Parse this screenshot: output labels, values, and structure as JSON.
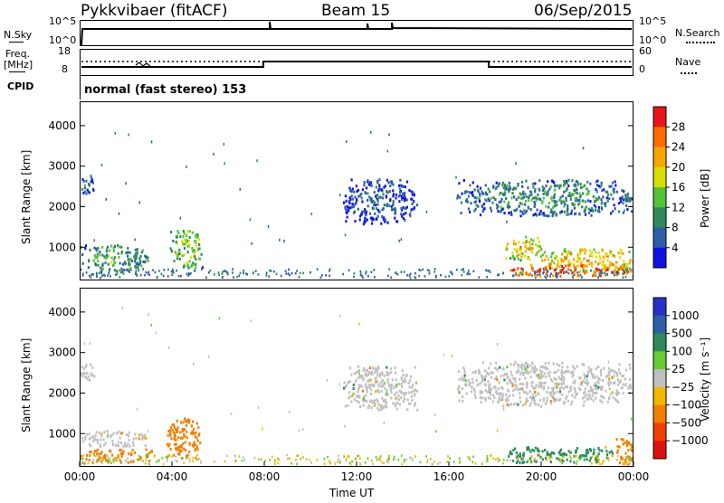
{
  "header": {
    "radar": "Pykkvibaer (fitACF)",
    "beam": "Beam 15",
    "date": "06/Sep/2015"
  },
  "nsky_panel": {
    "left_label": "N.Sky",
    "right_label": "N.Search",
    "left_ticks": [
      "10^5",
      "10^0"
    ],
    "right_ticks": [
      "10^5",
      "10^0"
    ]
  },
  "freq_panel": {
    "left_label_line1": "Freq.",
    "left_label_line2": "[MHz]",
    "right_label": "Nave",
    "left_ticks": [
      "18",
      "8"
    ],
    "right_ticks": [
      "60",
      "0"
    ]
  },
  "cpid": {
    "label": "CPID",
    "text": "normal (fast stereo) 153"
  },
  "axes": {
    "ylabel": "Slant Range [km]",
    "xlabel": "Time UT",
    "yticks": [
      "4000",
      "3000",
      "2000",
      "1000"
    ],
    "xticks": [
      "00:00",
      "04:00",
      "08:00",
      "12:00",
      "16:00",
      "20:00",
      "00:00"
    ]
  },
  "power_scale": {
    "title": "Power [dB]",
    "labels": [
      "28",
      "24",
      "20",
      "16",
      "12",
      "8",
      "4"
    ],
    "colors": [
      "#e8141a",
      "#ff6a00",
      "#f7a500",
      "#d8e000",
      "#54c33a",
      "#2f8a5a",
      "#2e5ea8",
      "#1010e0"
    ]
  },
  "velocity_scale": {
    "title": "Velocity [m s⁻¹]",
    "labels": [
      "1000",
      "500",
      "100",
      "25",
      "−25",
      "−100",
      "−500",
      "−1000"
    ],
    "colors": [
      "#2830c8",
      "#2e5ea8",
      "#2f8a5a",
      "#66cc33",
      "#c0c0c0",
      "#f0b800",
      "#f08000",
      "#f04000",
      "#e01010"
    ]
  },
  "chart_data": [
    {
      "type": "heatmap",
      "panel": "power",
      "ylabel": "Slant Range [km]",
      "xlabel": "",
      "xlim": [
        "00:00",
        "24:00"
      ],
      "ylim": [
        180,
        4600
      ],
      "colorbar": {
        "label": "Power [dB]",
        "ticks": [
          4,
          8,
          12,
          16,
          20,
          24,
          28
        ]
      },
      "regions": [
        {
          "t0": 0.0,
          "t1": 3.0,
          "r0": 400,
          "r1": 1100,
          "level": 12
        },
        {
          "t0": 0.0,
          "t1": 0.6,
          "r0": 2300,
          "r1": 2800,
          "level": 8
        },
        {
          "t0": 3.9,
          "t1": 5.3,
          "r0": 500,
          "r1": 1450,
          "level": 16
        },
        {
          "t0": 11.4,
          "t1": 14.6,
          "r0": 1600,
          "r1": 2700,
          "level": 6
        },
        {
          "t0": 16.3,
          "t1": 23.9,
          "r0": 1800,
          "r1": 2700,
          "level": 10
        },
        {
          "t0": 18.4,
          "t1": 20.0,
          "r0": 700,
          "r1": 1300,
          "level": 20
        },
        {
          "t0": 20.0,
          "t1": 24.0,
          "r0": 400,
          "r1": 1000,
          "level": 22
        },
        {
          "t0": 18.6,
          "t1": 24.0,
          "r0": 300,
          "r1": 600,
          "level": 28
        }
      ]
    },
    {
      "type": "heatmap",
      "panel": "velocity",
      "ylabel": "Slant Range [km]",
      "xlabel": "Time UT",
      "xlim": [
        "00:00",
        "24:00"
      ],
      "ylim": [
        180,
        4600
      ],
      "colorbar": {
        "label": "Velocity [m s⁻¹]",
        "ticks": [
          1000,
          500,
          100,
          25,
          -25,
          -100,
          -500,
          -1000
        ]
      },
      "regions": [
        {
          "t0": 0.0,
          "t1": 3.0,
          "r0": 700,
          "r1": 1100,
          "value": 0
        },
        {
          "t0": 0.0,
          "t1": 3.2,
          "r0": 300,
          "r1": 650,
          "value": -300
        },
        {
          "t0": 0.0,
          "t1": 0.6,
          "r0": 2300,
          "r1": 2800,
          "value": 0
        },
        {
          "t0": 3.7,
          "t1": 5.3,
          "r0": 400,
          "r1": 1400,
          "value": -300
        },
        {
          "t0": 11.4,
          "t1": 14.6,
          "r0": 1600,
          "r1": 2700,
          "value": 0
        },
        {
          "t0": 16.3,
          "t1": 23.9,
          "r0": 1700,
          "r1": 2800,
          "value": 0
        },
        {
          "t0": 18.4,
          "t1": 20.3,
          "r0": 300,
          "r1": 700,
          "value": 150
        },
        {
          "t0": 20.3,
          "t1": 23.2,
          "r0": 300,
          "r1": 700,
          "value": 150
        },
        {
          "t0": 23.2,
          "t1": 24.0,
          "r0": 200,
          "r1": 900,
          "value": -400
        }
      ]
    }
  ]
}
